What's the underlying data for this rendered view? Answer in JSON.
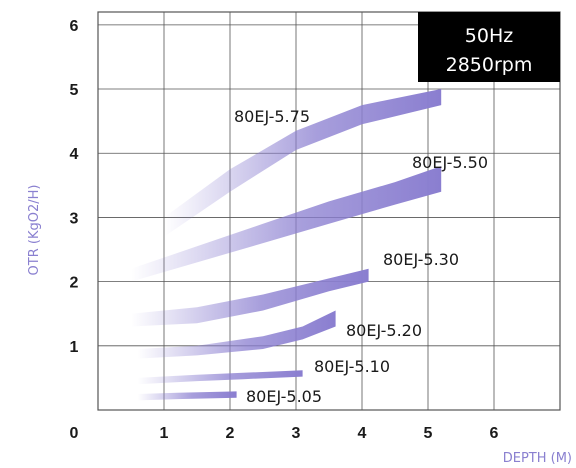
{
  "chart_data": {
    "type": "area",
    "xlabel": "DEPTH (M)",
    "ylabel": "OTR (KgO2/H)",
    "xlim": [
      0,
      7
    ],
    "ylim": [
      0,
      6.2
    ],
    "xticks": [
      "0",
      "1",
      "2",
      "3",
      "4",
      "5",
      "6"
    ],
    "yticks": [
      "1",
      "2",
      "3",
      "4",
      "5",
      "6"
    ],
    "grid": true,
    "badge": [
      "50Hz",
      "2850rpm"
    ],
    "colors": {
      "band": "#8a7ed0",
      "grid": "#555555",
      "badge_bg": "#000000",
      "label": "#1a1a1a",
      "axis_title": "#8a80d0"
    },
    "series": [
      {
        "name": "80EJ-5.75",
        "x": [
          1.0,
          2.0,
          3.0,
          4.0,
          5.2
        ],
        "lower": [
          2.7,
          3.4,
          4.05,
          4.45,
          4.75
        ],
        "upper": [
          3.0,
          3.75,
          4.35,
          4.75,
          5.0
        ]
      },
      {
        "name": "80EJ-5.50",
        "x": [
          0.5,
          1.5,
          2.5,
          3.5,
          4.5,
          5.2
        ],
        "lower": [
          2.0,
          2.3,
          2.6,
          2.9,
          3.2,
          3.4
        ],
        "upper": [
          2.2,
          2.55,
          2.9,
          3.25,
          3.55,
          3.8
        ]
      },
      {
        "name": "80EJ-5.30",
        "x": [
          0.5,
          1.5,
          2.5,
          3.5,
          4.1
        ],
        "lower": [
          1.3,
          1.35,
          1.55,
          1.85,
          2.0
        ],
        "upper": [
          1.5,
          1.6,
          1.8,
          2.05,
          2.2
        ]
      },
      {
        "name": "80EJ-5.20",
        "x": [
          0.6,
          1.5,
          2.5,
          3.1,
          3.6
        ],
        "lower": [
          0.8,
          0.85,
          0.95,
          1.1,
          1.3
        ],
        "upper": [
          0.95,
          1.0,
          1.15,
          1.3,
          1.55
        ]
      },
      {
        "name": "80EJ-5.10",
        "x": [
          0.6,
          1.5,
          2.2,
          3.1
        ],
        "lower": [
          0.4,
          0.45,
          0.48,
          0.52
        ],
        "upper": [
          0.5,
          0.55,
          0.58,
          0.62
        ]
      },
      {
        "name": "80EJ-5.05",
        "x": [
          0.6,
          1.2,
          2.1
        ],
        "lower": [
          0.15,
          0.17,
          0.19
        ],
        "upper": [
          0.25,
          0.27,
          0.29
        ]
      }
    ]
  }
}
